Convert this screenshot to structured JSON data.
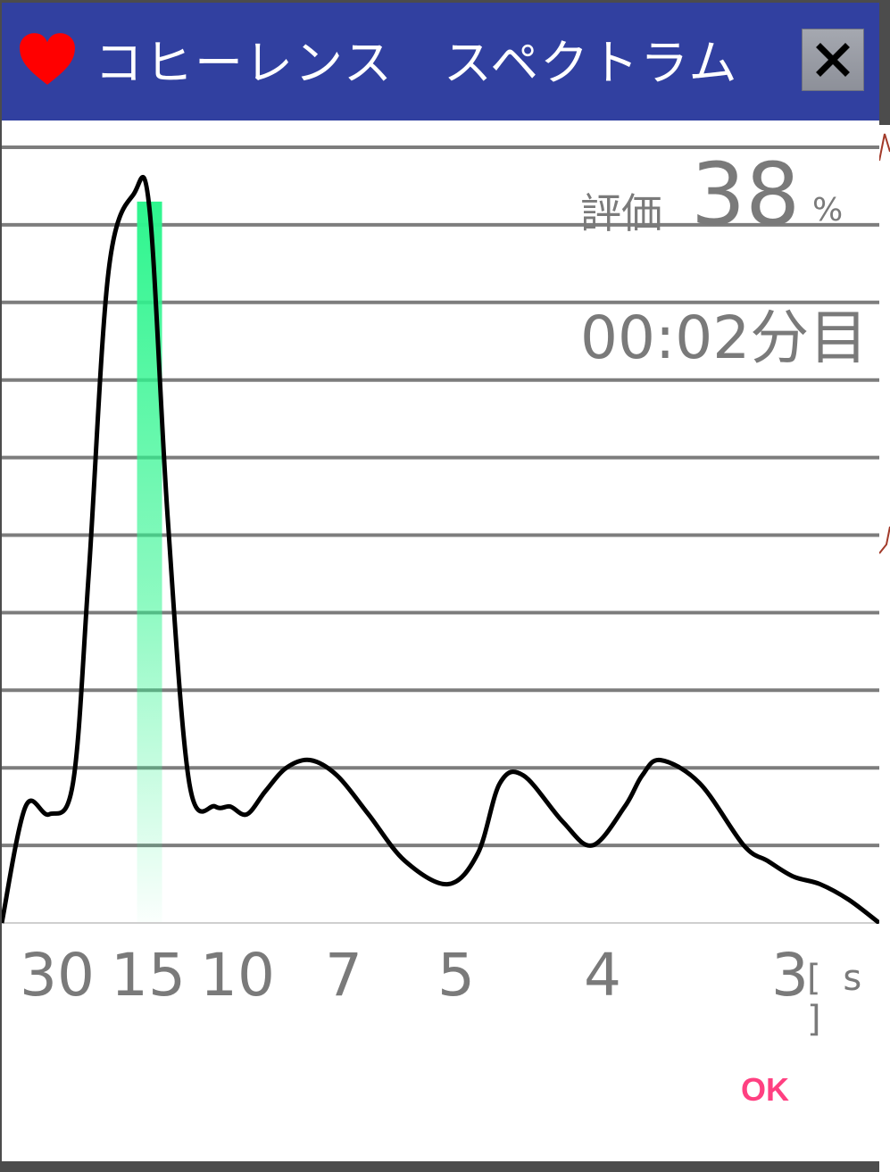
{
  "dialog": {
    "title": "コヒーレンス　スペクトラム",
    "close_label": "×",
    "score_label": "評価",
    "score_value": "38",
    "score_unit": "%",
    "elapsed": "00:02分目",
    "ok_label": "OK"
  },
  "colors": {
    "titlebar": "#3140a0",
    "heart": "#ff0000",
    "highlight": "#2ef58e",
    "curve": "#000000",
    "gridline": "#7d7d7d",
    "ok": "#ff4081"
  },
  "chart_data": {
    "type": "line",
    "title": "",
    "xlabel": "[ s ]",
    "ylabel": "",
    "x_scale": "reciprocal",
    "x_ticks": [
      "30",
      "15",
      "10",
      "7",
      "5",
      "4",
      "3"
    ],
    "x_unit": "[ s ]",
    "grid": true,
    "highlight_band": {
      "center": 13,
      "label": ""
    },
    "series": [
      {
        "x": [
          40,
          30,
          24,
          20,
          18,
          16,
          14,
          13,
          12,
          11,
          10,
          9.5,
          9,
          8.5,
          8,
          7.5,
          7,
          6.5,
          6,
          5.5,
          5.2,
          5,
          4.8,
          4.5,
          4.3,
          4.1,
          4,
          3.9,
          3.7,
          3.5,
          3.4,
          3.3,
          3.2,
          3.1,
          3
        ],
        "y": [
          0,
          1.5,
          1.4,
          1.8,
          4.5,
          8.4,
          9.4,
          9.2,
          5.2,
          1.8,
          1.5,
          1.5,
          1.4,
          1.7,
          2.0,
          2.1,
          1.9,
          1.4,
          0.8,
          0.5,
          0.9,
          1.8,
          1.9,
          1.3,
          1.0,
          1.5,
          1.9,
          2.1,
          1.8,
          1.0,
          0.8,
          0.6,
          0.5,
          0.3,
          0
        ]
      }
    ]
  }
}
